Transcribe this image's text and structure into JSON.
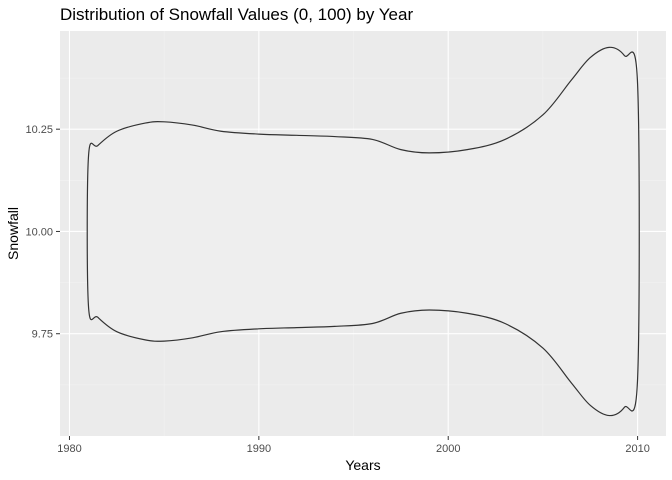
{
  "chart_data": {
    "type": "violin",
    "title": "Distribution of Snowfall Values (0, 100) by Year",
    "xlabel": "Years",
    "ylabel": "Snowfall",
    "xlim": [
      1979.5,
      2011.5
    ],
    "ylim": [
      9.5,
      10.49
    ],
    "x_ticks": [
      1980,
      1990,
      2000,
      2010
    ],
    "x_tick_labels": [
      "1980",
      "1990",
      "2000",
      "2010"
    ],
    "y_ticks": [
      9.75,
      10.0,
      10.25
    ],
    "y_tick_labels": [
      "9.75",
      "10.00",
      "10.25"
    ],
    "grid": true,
    "violin": {
      "center": 10.0,
      "year_range": [
        1981,
        2010
      ],
      "upper_outline": [
        {
          "x": 1981.0,
          "y": 10.18
        },
        {
          "x": 1981.5,
          "y": 10.21
        },
        {
          "x": 1982.5,
          "y": 10.245
        },
        {
          "x": 1984.0,
          "y": 10.265
        },
        {
          "x": 1985.0,
          "y": 10.268
        },
        {
          "x": 1986.5,
          "y": 10.26
        },
        {
          "x": 1988.0,
          "y": 10.245
        },
        {
          "x": 1990.0,
          "y": 10.238
        },
        {
          "x": 1992.0,
          "y": 10.235
        },
        {
          "x": 1994.0,
          "y": 10.232
        },
        {
          "x": 1996.0,
          "y": 10.225
        },
        {
          "x": 1997.5,
          "y": 10.2
        },
        {
          "x": 1999.0,
          "y": 10.192
        },
        {
          "x": 2001.0,
          "y": 10.2
        },
        {
          "x": 2003.0,
          "y": 10.225
        },
        {
          "x": 2005.0,
          "y": 10.285
        },
        {
          "x": 2006.5,
          "y": 10.37
        },
        {
          "x": 2007.5,
          "y": 10.425
        },
        {
          "x": 2008.5,
          "y": 10.45
        },
        {
          "x": 2009.3,
          "y": 10.43
        },
        {
          "x": 2010.0,
          "y": 10.36
        }
      ]
    }
  }
}
